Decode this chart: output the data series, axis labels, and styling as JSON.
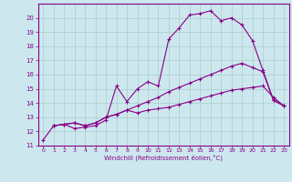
{
  "xlabel": "Windchill (Refroidissement éolien,°C)",
  "bg_color": "#cce8ee",
  "grid_color": "#aacccc",
  "line_color": "#880088",
  "xlim": [
    -0.5,
    23.5
  ],
  "ylim": [
    11,
    21
  ],
  "yticks": [
    11,
    12,
    13,
    14,
    15,
    16,
    17,
    18,
    19,
    20
  ],
  "xticks": [
    0,
    1,
    2,
    3,
    4,
    5,
    6,
    7,
    8,
    9,
    10,
    11,
    12,
    13,
    14,
    15,
    16,
    17,
    18,
    19,
    20,
    21,
    22,
    23
  ],
  "line1_x": [
    0,
    1,
    2,
    3,
    4,
    5,
    6,
    7,
    8,
    9,
    10,
    11,
    12,
    13,
    14,
    15,
    16,
    17,
    18,
    19,
    20,
    21,
    22,
    23
  ],
  "line1_y": [
    11.4,
    12.4,
    12.5,
    12.2,
    12.3,
    12.4,
    12.8,
    15.2,
    14.1,
    15.0,
    15.5,
    15.2,
    18.5,
    19.3,
    20.2,
    20.3,
    20.5,
    19.8,
    20.0,
    19.5,
    18.4,
    16.3,
    14.2,
    13.8
  ],
  "line2_x": [
    1,
    2,
    3,
    4,
    5,
    6,
    7,
    8,
    9,
    10,
    11,
    12,
    13,
    14,
    15,
    16,
    17,
    18,
    19,
    20,
    21,
    22,
    23
  ],
  "line2_y": [
    12.4,
    12.5,
    12.6,
    12.4,
    12.6,
    13.0,
    13.2,
    13.5,
    13.8,
    14.1,
    14.4,
    14.8,
    15.1,
    15.4,
    15.7,
    16.0,
    16.3,
    16.6,
    16.8,
    16.5,
    16.2,
    14.2,
    13.8
  ],
  "line3_x": [
    1,
    2,
    3,
    4,
    5,
    6,
    7,
    8,
    9,
    10,
    11,
    12,
    13,
    14,
    15,
    16,
    17,
    18,
    19,
    20,
    21,
    22,
    23
  ],
  "line3_y": [
    12.4,
    12.5,
    12.6,
    12.4,
    12.6,
    13.0,
    13.2,
    13.5,
    13.3,
    13.5,
    13.6,
    13.7,
    13.9,
    14.1,
    14.3,
    14.5,
    14.7,
    14.9,
    15.0,
    15.1,
    15.2,
    14.4,
    13.8
  ]
}
